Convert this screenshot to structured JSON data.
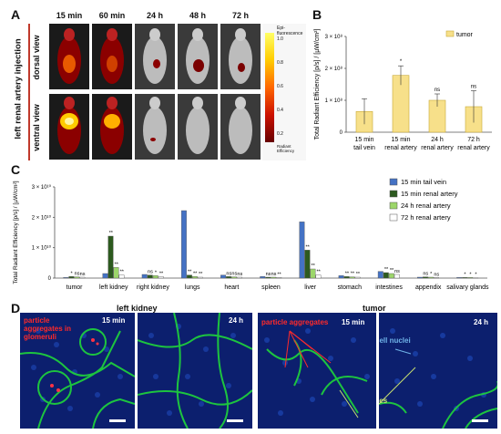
{
  "panelA": {
    "letter": "A",
    "side_label": "left renal artery injection",
    "row_labels": [
      "dorsal view",
      "ventral view"
    ],
    "timepoints": [
      "15 min",
      "60 min",
      "24 h",
      "48 h",
      "72 h"
    ],
    "colorbar_title": "Epi-fluorescence",
    "colorbar_ticks": [
      "1.0",
      "0.8",
      "0.6",
      "0.4",
      "0.2"
    ],
    "colorbar_unit_label": "Radiant Efficiency"
  },
  "panelB": {
    "letter": "B",
    "chart_data": {
      "type": "bar",
      "categories": [
        "15 min tail vein",
        "15 min renal artery",
        "24 h renal artery",
        "72 h renal artery"
      ],
      "series": [
        {
          "name": "tumor",
          "values": [
            0.65,
            1.78,
            1.0,
            0.8
          ],
          "errors": [
            0.4,
            0.3,
            0.2,
            0.5
          ]
        }
      ],
      "significance": [
        "",
        "*",
        "ns",
        "ns"
      ],
      "ylabel": "Total Radiant Efficiency [p/s] / [µW/cm²]",
      "yticks": [
        "0",
        "1 × 10⁸",
        "2 × 10⁸",
        "3 × 10⁸"
      ],
      "ylim": [
        0,
        3
      ],
      "legend_position": "top-right",
      "color": "#f7e08a"
    }
  },
  "panelC": {
    "letter": "C",
    "chart_data": {
      "type": "bar",
      "categories": [
        "tumor",
        "left kidney",
        "right kidney",
        "lungs",
        "heart",
        "spleen",
        "liver",
        "stomach",
        "intestines",
        "appendix",
        "salivary glands"
      ],
      "series": [
        {
          "name": "15 min tail vein",
          "color": "#4472c4",
          "values": [
            0.02,
            0.15,
            0.12,
            2.22,
            0.1,
            0.05,
            1.85,
            0.08,
            0.22,
            0.03,
            0.02
          ]
        },
        {
          "name": "15 min renal artery",
          "color": "#2d5a1f",
          "values": [
            0.05,
            1.38,
            0.1,
            0.1,
            0.05,
            0.03,
            0.92,
            0.05,
            0.18,
            0.04,
            0.02
          ]
        },
        {
          "name": "24 h renal artery",
          "color": "#9cd66a",
          "values": [
            0.04,
            0.35,
            0.08,
            0.05,
            0.04,
            0.03,
            0.3,
            0.04,
            0.15,
            0.03,
            0.02
          ]
        },
        {
          "name": "72 h renal artery",
          "color": "#ffffff",
          "values": [
            0.03,
            0.1,
            0.05,
            0.03,
            0.03,
            0.02,
            0.1,
            0.03,
            0.12,
            0.02,
            0.01
          ]
        }
      ],
      "significance": [
        [
          "*",
          "ns",
          "ns"
        ],
        [
          "**",
          "**",
          "**"
        ],
        [
          "ns",
          "*",
          "**"
        ],
        [
          "**",
          "**",
          "**"
        ],
        [
          "ns",
          "ns",
          "ns"
        ],
        [
          "ns",
          "ns",
          "**"
        ],
        [
          "**",
          "**",
          "**"
        ],
        [
          "**",
          "**",
          "**"
        ],
        [
          "**",
          "**",
          "ns"
        ],
        [
          "ns",
          "*",
          "ns"
        ],
        [
          "*",
          "*",
          "*"
        ]
      ],
      "ylabel": "Total Radiant Efficiency [p/s] / [µW/cm²]",
      "yticks": [
        "0",
        "1 × 10¹⁰",
        "2 × 10¹⁰",
        "3 × 10¹⁰"
      ],
      "ylim": [
        0,
        3
      ],
      "legend_position": "top-right"
    }
  },
  "panelD": {
    "letter": "D",
    "left_title": "left kidney",
    "right_title": "tumor",
    "labels": {
      "particle_aggregates_glomeruli": "particle aggregates in glomeruli",
      "particle_aggregates": "particle aggregates",
      "cell_nuclei": "cell nuclei",
      "capillaries": "capillaries"
    },
    "time_15": "15 min",
    "time_24": "24 h"
  }
}
